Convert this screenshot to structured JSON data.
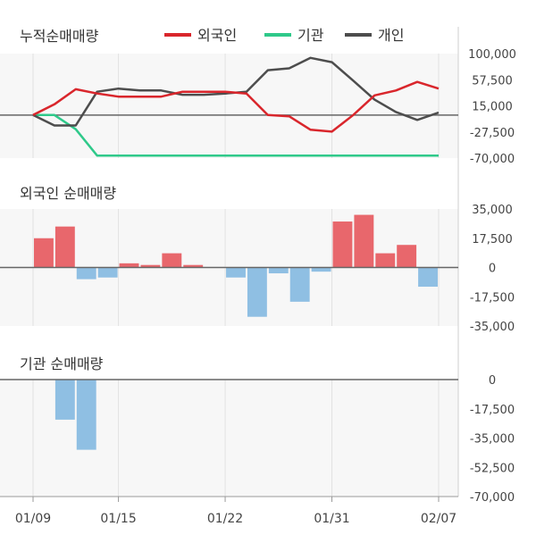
{
  "chart_data": [
    {
      "type": "line",
      "title": "누적순매매량",
      "legend": [
        "외국인",
        "기관",
        "개인"
      ],
      "legend_placement": "top",
      "colors": {
        "외국인": "#d9262c",
        "기관": "#2fc98a",
        "개인": "#4d4d4d"
      },
      "ylim": [
        -70000,
        100000
      ],
      "yticks": [
        "100,000",
        "57,500",
        "15,000",
        "-27,500",
        "-70,000"
      ],
      "ytick_values": [
        100000,
        57500,
        15000,
        -27500,
        -70000
      ],
      "baseline": 0,
      "series": [
        {
          "name": "외국인",
          "values": [
            0,
            17500,
            42000,
            35000,
            30000,
            30000,
            30000,
            38000,
            38000,
            38000,
            35000,
            0,
            -2000,
            -24000,
            -27000,
            0,
            32000,
            40000,
            54000,
            43000
          ]
        },
        {
          "name": "기관",
          "values": [
            0,
            0,
            -23000,
            -66000,
            -66000,
            -66000,
            -66000,
            -66000,
            -66000,
            -66000,
            -66000,
            -66000,
            -66000,
            -66000,
            -66000,
            -66000,
            -66000,
            -66000,
            -66000,
            -66000
          ]
        },
        {
          "name": "개인",
          "values": [
            0,
            -17000,
            -17000,
            38000,
            43000,
            40000,
            40000,
            33000,
            33000,
            35000,
            38000,
            73000,
            76000,
            93000,
            86000,
            56000,
            25000,
            5000,
            -8000,
            4000
          ]
        }
      ]
    },
    {
      "type": "bar",
      "title": "외국인 순매매량",
      "ylim": [
        -35000,
        35000
      ],
      "yticks": [
        "35,000",
        "17,500",
        "0",
        "-17,500",
        "-35,000"
      ],
      "ytick_values": [
        35000,
        17500,
        0,
        -17500,
        -35000
      ],
      "colors": {
        "positive": "#e8676c",
        "negative": "#8fbfe3"
      },
      "values": [
        17500,
        24500,
        -7000,
        -6000,
        2500,
        1500,
        8500,
        1500,
        0,
        -6000,
        -29500,
        -3500,
        -20500,
        -2500,
        27500,
        31500,
        8500,
        13500,
        -11500
      ]
    },
    {
      "type": "bar",
      "title": "기관 순매매량",
      "ylim": [
        -70000,
        0
      ],
      "yticks": [
        "0",
        "-17,500",
        "-35,000",
        "-52,500",
        "-70,000"
      ],
      "ytick_values": [
        0,
        -17500,
        -35000,
        -52500,
        -70000
      ],
      "colors": {
        "positive": "#e8676c",
        "negative": "#8fbfe3"
      },
      "values": [
        0,
        -24000,
        -42000,
        0,
        0,
        0,
        0,
        0,
        0,
        0,
        0,
        0,
        0,
        0,
        0,
        0,
        0,
        0,
        0
      ]
    }
  ],
  "x_axis": {
    "labels": [
      "01/09",
      "01/15",
      "01/22",
      "01/31",
      "02/07"
    ],
    "label_index": [
      0,
      4,
      9,
      14,
      19
    ]
  }
}
